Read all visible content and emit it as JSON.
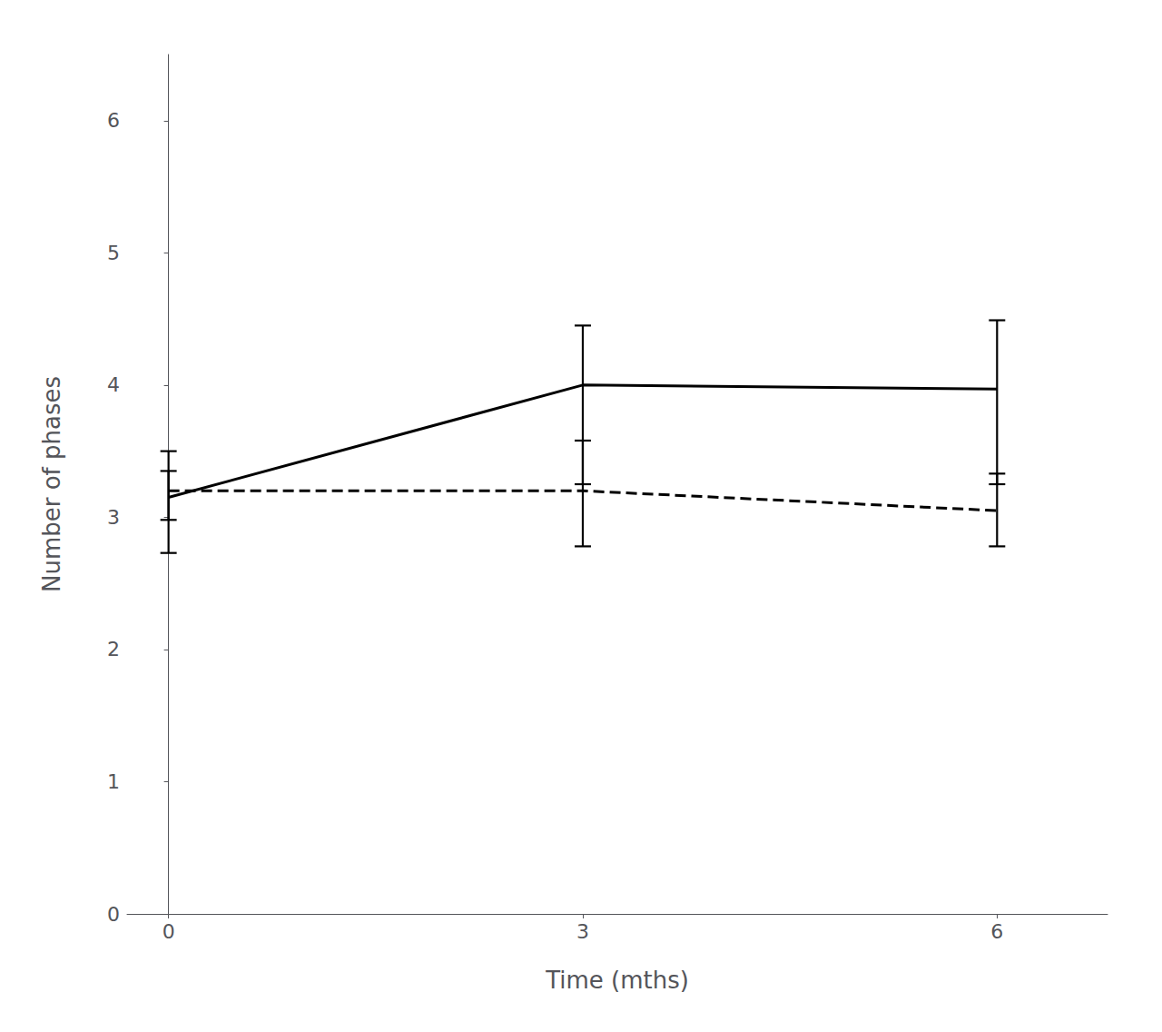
{
  "chart_data": {
    "type": "line",
    "xlabel": "Time (mths)",
    "ylabel": "Number of phases",
    "x": [
      0,
      3,
      6
    ],
    "series": [
      {
        "values": [
          3.15,
          4.0,
          3.97
        ],
        "yerr_lower": [
          0.42,
          0.75,
          0.72
        ],
        "yerr_upper": [
          0.35,
          0.45,
          0.52
        ],
        "color": "#000000",
        "line_style": "solid"
      },
      {
        "values": [
          3.2,
          3.2,
          3.05
        ],
        "yerr_lower": [
          0.22,
          0.42,
          0.27
        ],
        "yerr_upper": [
          0.15,
          0.38,
          0.28
        ],
        "color": "#000000",
        "line_style": "dashed"
      }
    ],
    "xlim": [
      -0.3,
      6.8
    ],
    "ylim": [
      0,
      6.5
    ],
    "xticks": [
      0,
      3,
      6
    ],
    "yticks": [
      0,
      1,
      2,
      3,
      4,
      5,
      6
    ],
    "grid": false
  }
}
